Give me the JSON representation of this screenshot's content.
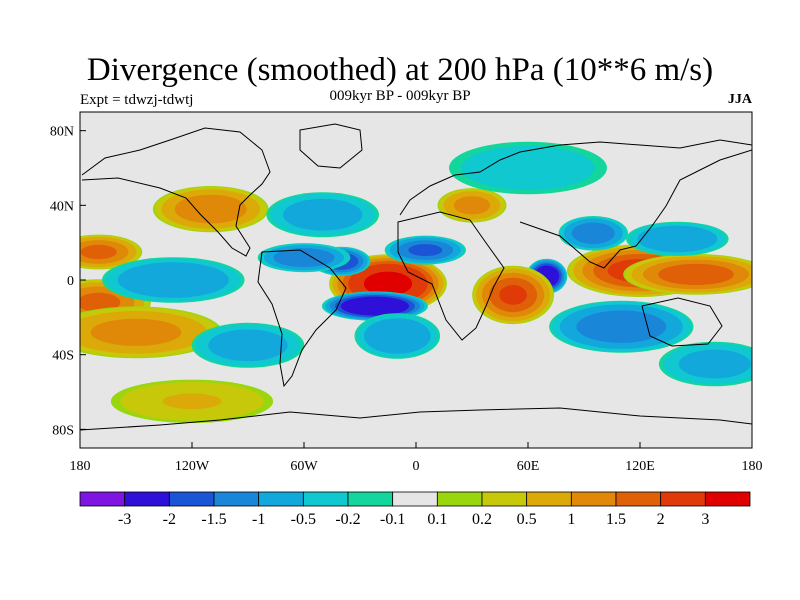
{
  "title": "Divergence (smoothed) at 200 hPa (10**6 m/s)",
  "subtitle": "009kyr BP - 009kyr BP",
  "experiment": "Expt = tdwzj-tdwtj",
  "season": "JJA",
  "axes": {
    "lat_ticks": [
      {
        "value": 80,
        "label": "80N"
      },
      {
        "value": 40,
        "label": "40N"
      },
      {
        "value": 0,
        "label": "0"
      },
      {
        "value": -40,
        "label": "40S"
      },
      {
        "value": -80,
        "label": "80S"
      }
    ],
    "lon_ticks": [
      {
        "value": -180,
        "label": "180"
      },
      {
        "value": -120,
        "label": "120W"
      },
      {
        "value": -60,
        "label": "60W"
      },
      {
        "value": 0,
        "label": "0"
      },
      {
        "value": 60,
        "label": "60E"
      },
      {
        "value": 120,
        "label": "120E"
      },
      {
        "value": 180,
        "label": "180"
      }
    ]
  },
  "colorbar": {
    "colors": [
      "#7f15e0",
      "#2e10d8",
      "#1a55d6",
      "#1a86d8",
      "#12a8dc",
      "#10c8d0",
      "#12d69c",
      "#e6e6e6",
      "#9ad60e",
      "#c8c80a",
      "#dcaa08",
      "#e08808",
      "#e06008",
      "#e03a08",
      "#e00000"
    ],
    "labels": [
      "-3",
      "-2",
      "-1.5",
      "-1",
      "-0.5",
      "-0.2",
      "-0.1",
      "0.1",
      "0.2",
      "0.5",
      "1",
      "1.5",
      "2",
      "3"
    ]
  },
  "chart_data": {
    "type": "heatmap",
    "title": "Divergence (smoothed) at 200 hPa (10**6 m/s)",
    "subtitle": "009kyr BP - 009kyr BP",
    "lon_range": [
      -180,
      180
    ],
    "lat_range": [
      -90,
      90
    ],
    "levels": [
      -3,
      -2,
      -1.5,
      -1,
      -0.5,
      -0.2,
      -0.1,
      0.1,
      0.2,
      0.5,
      1,
      1.5,
      2,
      3
    ],
    "features": [
      {
        "lon": -15,
        "lat": -2,
        "value": 3.2,
        "rlon": 20,
        "rlat": 10
      },
      {
        "lon": -22,
        "lat": -14,
        "value": -3.0,
        "rlon": 18,
        "rlat": 5
      },
      {
        "lon": -40,
        "lat": 10,
        "value": -2.0,
        "rlon": 10,
        "rlat": 5
      },
      {
        "lon": -60,
        "lat": 12,
        "value": -1.5,
        "rlon": 16,
        "rlat": 5
      },
      {
        "lon": 70,
        "lat": 2,
        "value": -2.8,
        "rlon": 7,
        "rlat": 6
      },
      {
        "lon": 5,
        "lat": 16,
        "value": -1.6,
        "rlon": 14,
        "rlat": 5
      },
      {
        "lon": 52,
        "lat": -8,
        "value": 2.0,
        "rlon": 14,
        "rlat": 10
      },
      {
        "lon": 120,
        "lat": 5,
        "value": 2.2,
        "rlon": 25,
        "rlat": 9
      },
      {
        "lon": 150,
        "lat": 3,
        "value": 1.8,
        "rlon": 25,
        "rlat": 7
      },
      {
        "lon": 95,
        "lat": 25,
        "value": -1.4,
        "rlon": 12,
        "rlat": 6
      },
      {
        "lon": 140,
        "lat": 22,
        "value": -1.0,
        "rlon": 18,
        "rlat": 6
      },
      {
        "lon": -170,
        "lat": 15,
        "value": 1.6,
        "rlon": 15,
        "rlat": 6
      },
      {
        "lon": -170,
        "lat": -12,
        "value": 1.6,
        "rlon": 18,
        "rlat": 8
      },
      {
        "lon": -150,
        "lat": -28,
        "value": 1.2,
        "rlon": 30,
        "rlat": 9
      },
      {
        "lon": -110,
        "lat": 38,
        "value": 1.4,
        "rlon": 20,
        "rlat": 8
      },
      {
        "lon": -130,
        "lat": 0,
        "value": -1.0,
        "rlon": 25,
        "rlat": 8
      },
      {
        "lon": 110,
        "lat": -25,
        "value": -1.4,
        "rlon": 25,
        "rlat": 9
      },
      {
        "lon": 30,
        "lat": 40,
        "value": 1.2,
        "rlon": 12,
        "rlat": 6
      },
      {
        "lon": -50,
        "lat": 35,
        "value": -0.8,
        "rlon": 20,
        "rlat": 8
      },
      {
        "lon": -10,
        "lat": -30,
        "value": -1.0,
        "rlon": 15,
        "rlat": 8
      },
      {
        "lon": -90,
        "lat": -35,
        "value": -0.8,
        "rlon": 20,
        "rlat": 8
      },
      {
        "lon": 160,
        "lat": -45,
        "value": -0.7,
        "rlon": 20,
        "rlat": 8
      },
      {
        "lon": 60,
        "lat": 60,
        "value": -0.4,
        "rlon": 30,
        "rlat": 10
      },
      {
        "lon": -120,
        "lat": -65,
        "value": 0.5,
        "rlon": 30,
        "rlat": 8
      }
    ]
  }
}
